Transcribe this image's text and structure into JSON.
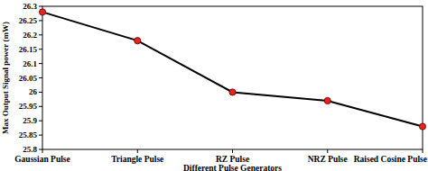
{
  "chart_data": {
    "type": "line",
    "x_label": "Different Pulse Generators",
    "y_label": "Max Output Signal power (mW)",
    "categories": [
      "Gaussian Pulse",
      "Triangle Pulse",
      "RZ Pulse",
      "NRZ Pulse",
      "Raised Cosine Pulse"
    ],
    "values": [
      26.28,
      26.18,
      26.0,
      25.97,
      25.88
    ],
    "color": "#000000",
    "marker": "circle",
    "ylim": [
      25.8,
      26.3
    ],
    "yticks": [
      25.8,
      25.85,
      25.9,
      25.95,
      26,
      26.05,
      26.1,
      26.15,
      26.2,
      26.25,
      26.3
    ],
    "grid": false
  }
}
